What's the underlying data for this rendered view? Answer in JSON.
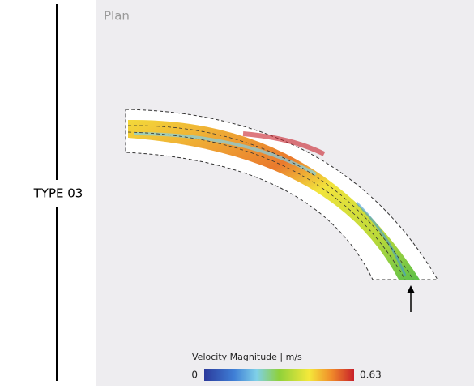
{
  "label": "TYPE 03",
  "panel": {
    "title": "Plan"
  },
  "legend": {
    "title": "Velocity Magnitude | m/s",
    "min": 0,
    "max": 0.63
  }
}
